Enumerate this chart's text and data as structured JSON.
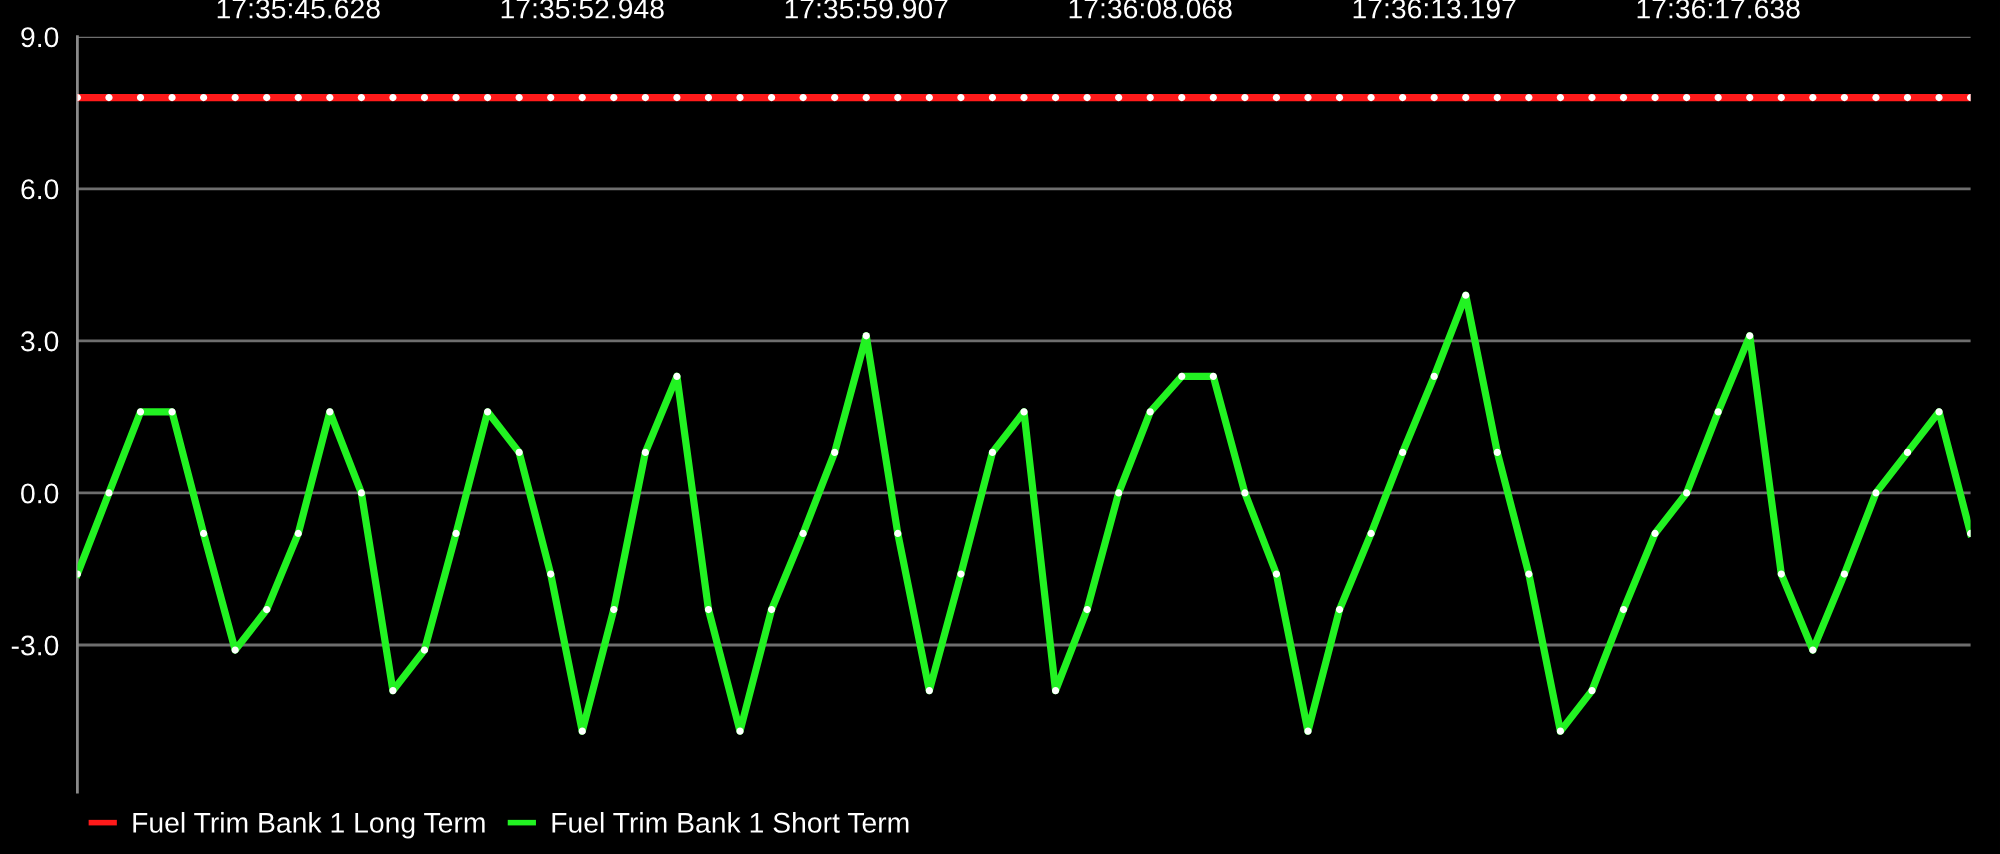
{
  "chart_data": {
    "type": "line",
    "categories": [
      null,
      null,
      null,
      null,
      null,
      null,
      null,
      "17:35:45.628",
      null,
      null,
      null,
      null,
      null,
      null,
      null,
      null,
      "17:35:52.948",
      null,
      null,
      null,
      null,
      null,
      null,
      null,
      null,
      "17:35:59.907",
      null,
      null,
      null,
      null,
      null,
      null,
      null,
      null,
      "17:36:08.068",
      null,
      null,
      null,
      null,
      null,
      null,
      null,
      null,
      "17:36:13.197",
      null,
      null,
      null,
      null,
      null,
      null,
      null,
      null,
      "17:36:17.638",
      null,
      null,
      null,
      null,
      null,
      null,
      null,
      null
    ],
    "series": [
      {
        "name": "Fuel Trim Bank 1 Long Term",
        "color": "#ff1a1a",
        "values": [
          7.8,
          7.8,
          7.8,
          7.8,
          7.8,
          7.8,
          7.8,
          7.8,
          7.8,
          7.8,
          7.8,
          7.8,
          7.8,
          7.8,
          7.8,
          7.8,
          7.8,
          7.8,
          7.8,
          7.8,
          7.8,
          7.8,
          7.8,
          7.8,
          7.8,
          7.8,
          7.8,
          7.8,
          7.8,
          7.8,
          7.8,
          7.8,
          7.8,
          7.8,
          7.8,
          7.8,
          7.8,
          7.8,
          7.8,
          7.8,
          7.8,
          7.8,
          7.8,
          7.8,
          7.8,
          7.8,
          7.8,
          7.8,
          7.8,
          7.8,
          7.8,
          7.8,
          7.8,
          7.8,
          7.8,
          7.8,
          7.8,
          7.8,
          7.8,
          7.8,
          7.8
        ]
      },
      {
        "name": "Fuel Trim Bank 1 Short Term",
        "color": "#22f222",
        "values": [
          -1.6,
          0,
          1.6,
          1.6,
          -0.8,
          -3.1,
          -2.3,
          -0.8,
          1.6,
          0,
          -3.9,
          -3.1,
          -0.8,
          1.6,
          0.8,
          -1.6,
          -4.7,
          -2.3,
          0.8,
          2.3,
          -2.3,
          -4.7,
          -2.3,
          -0.8,
          0.8,
          3.1,
          -0.8,
          -3.9,
          -1.6,
          0.8,
          1.6,
          -3.9,
          -2.3,
          0,
          1.6,
          2.3,
          2.3,
          0,
          -1.6,
          -4.7,
          -2.3,
          -0.8,
          0.8,
          2.3,
          3.9,
          0.8,
          -1.6,
          -4.7,
          -3.9,
          -2.3,
          -0.8,
          0,
          1.6,
          3.1,
          -1.6,
          -3.1,
          -1.6,
          0,
          0.8,
          1.6,
          -0.8
        ]
      }
    ],
    "ylim": [
      -5.9,
      9.0
    ],
    "yticks": [
      {
        "value": -3,
        "label": "-3.0"
      },
      {
        "value": 0,
        "label": "0.0"
      },
      {
        "value": 3,
        "label": "3.0"
      },
      {
        "value": 6,
        "label": "6.0"
      },
      {
        "value": 9,
        "label": "9.0"
      }
    ],
    "grid": "y",
    "legend": "bottom left",
    "marker": "circle",
    "line_style": "solid"
  }
}
